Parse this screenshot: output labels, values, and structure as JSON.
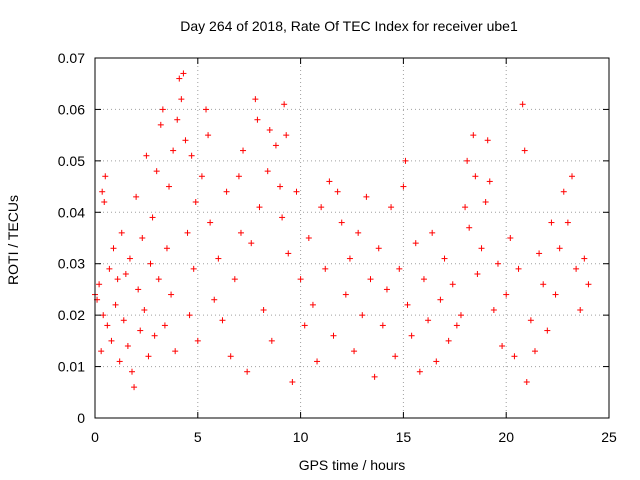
{
  "chart_data": {
    "type": "scatter",
    "title": "Day 264 of 2018, Rate Of TEC Index for receiver ube1",
    "xlabel": "GPS time / hours",
    "ylabel": "ROTI / TECUs",
    "xlim": [
      0,
      25
    ],
    "ylim": [
      0,
      0.07
    ],
    "x_ticks": [
      0,
      5,
      10,
      15,
      20,
      25
    ],
    "y_ticks": [
      0,
      0.01,
      0.02,
      0.03,
      0.04,
      0.05,
      0.06,
      0.07
    ],
    "x_tick_labels": [
      "0",
      "5",
      "10",
      "15",
      "20",
      "25"
    ],
    "y_tick_labels": [
      "0",
      "0.01",
      "0.02",
      "0.03",
      "0.04",
      "0.05",
      "0.06",
      "0.07"
    ],
    "grid": true,
    "marker": "+",
    "series": [
      {
        "color": "#ff0000",
        "points": [
          [
            0.0,
            0.024
          ],
          [
            0.1,
            0.023
          ],
          [
            0.2,
            0.026
          ],
          [
            0.3,
            0.013
          ],
          [
            0.35,
            0.044
          ],
          [
            0.4,
            0.02
          ],
          [
            0.45,
            0.042
          ],
          [
            0.5,
            0.047
          ],
          [
            0.6,
            0.018
          ],
          [
            0.7,
            0.029
          ],
          [
            0.8,
            0.015
          ],
          [
            0.9,
            0.033
          ],
          [
            1.0,
            0.022
          ],
          [
            1.1,
            0.027
          ],
          [
            1.2,
            0.011
          ],
          [
            1.3,
            0.036
          ],
          [
            1.4,
            0.019
          ],
          [
            1.5,
            0.028
          ],
          [
            1.6,
            0.014
          ],
          [
            1.7,
            0.031
          ],
          [
            1.8,
            0.009
          ],
          [
            1.9,
            0.006
          ],
          [
            2.0,
            0.043
          ],
          [
            2.1,
            0.025
          ],
          [
            2.2,
            0.017
          ],
          [
            2.3,
            0.035
          ],
          [
            2.4,
            0.021
          ],
          [
            2.5,
            0.051
          ],
          [
            2.6,
            0.012
          ],
          [
            2.7,
            0.03
          ],
          [
            2.8,
            0.039
          ],
          [
            2.9,
            0.016
          ],
          [
            3.0,
            0.048
          ],
          [
            3.1,
            0.027
          ],
          [
            3.2,
            0.057
          ],
          [
            3.3,
            0.06
          ],
          [
            3.4,
            0.018
          ],
          [
            3.5,
            0.033
          ],
          [
            3.6,
            0.045
          ],
          [
            3.7,
            0.024
          ],
          [
            3.8,
            0.052
          ],
          [
            3.9,
            0.013
          ],
          [
            4.0,
            0.058
          ],
          [
            4.1,
            0.066
          ],
          [
            4.2,
            0.062
          ],
          [
            4.3,
            0.067
          ],
          [
            4.4,
            0.054
          ],
          [
            4.5,
            0.036
          ],
          [
            4.6,
            0.02
          ],
          [
            4.7,
            0.051
          ],
          [
            4.8,
            0.029
          ],
          [
            4.9,
            0.042
          ],
          [
            5.0,
            0.015
          ],
          [
            5.2,
            0.047
          ],
          [
            5.4,
            0.06
          ],
          [
            5.5,
            0.055
          ],
          [
            5.6,
            0.038
          ],
          [
            5.8,
            0.023
          ],
          [
            6.0,
            0.031
          ],
          [
            6.2,
            0.019
          ],
          [
            6.4,
            0.044
          ],
          [
            6.6,
            0.012
          ],
          [
            6.8,
            0.027
          ],
          [
            7.0,
            0.047
          ],
          [
            7.1,
            0.036
          ],
          [
            7.2,
            0.052
          ],
          [
            7.4,
            0.009
          ],
          [
            7.6,
            0.034
          ],
          [
            7.8,
            0.062
          ],
          [
            7.9,
            0.058
          ],
          [
            8.0,
            0.041
          ],
          [
            8.2,
            0.021
          ],
          [
            8.4,
            0.048
          ],
          [
            8.5,
            0.056
          ],
          [
            8.6,
            0.015
          ],
          [
            8.8,
            0.053
          ],
          [
            9.0,
            0.045
          ],
          [
            9.1,
            0.039
          ],
          [
            9.2,
            0.061
          ],
          [
            9.3,
            0.055
          ],
          [
            9.4,
            0.032
          ],
          [
            9.6,
            0.007
          ],
          [
            9.8,
            0.044
          ],
          [
            10.0,
            0.027
          ],
          [
            10.2,
            0.018
          ],
          [
            10.4,
            0.035
          ],
          [
            10.6,
            0.022
          ],
          [
            10.8,
            0.011
          ],
          [
            11.0,
            0.041
          ],
          [
            11.2,
            0.029
          ],
          [
            11.4,
            0.046
          ],
          [
            11.6,
            0.016
          ],
          [
            11.8,
            0.044
          ],
          [
            12.0,
            0.038
          ],
          [
            12.2,
            0.024
          ],
          [
            12.4,
            0.031
          ],
          [
            12.6,
            0.013
          ],
          [
            12.8,
            0.036
          ],
          [
            13.0,
            0.02
          ],
          [
            13.2,
            0.043
          ],
          [
            13.4,
            0.027
          ],
          [
            13.6,
            0.008
          ],
          [
            13.8,
            0.033
          ],
          [
            14.0,
            0.018
          ],
          [
            14.2,
            0.025
          ],
          [
            14.4,
            0.041
          ],
          [
            14.6,
            0.012
          ],
          [
            14.8,
            0.029
          ],
          [
            15.0,
            0.045
          ],
          [
            15.1,
            0.05
          ],
          [
            15.2,
            0.022
          ],
          [
            15.4,
            0.016
          ],
          [
            15.6,
            0.034
          ],
          [
            15.8,
            0.009
          ],
          [
            16.0,
            0.027
          ],
          [
            16.2,
            0.019
          ],
          [
            16.4,
            0.036
          ],
          [
            16.6,
            0.011
          ],
          [
            16.8,
            0.023
          ],
          [
            17.0,
            0.031
          ],
          [
            17.2,
            0.015
          ],
          [
            17.4,
            0.026
          ],
          [
            17.6,
            0.018
          ],
          [
            17.8,
            0.02
          ],
          [
            18.0,
            0.041
          ],
          [
            18.1,
            0.05
          ],
          [
            18.2,
            0.037
          ],
          [
            18.4,
            0.055
          ],
          [
            18.5,
            0.047
          ],
          [
            18.6,
            0.028
          ],
          [
            18.8,
            0.033
          ],
          [
            19.0,
            0.042
          ],
          [
            19.1,
            0.054
          ],
          [
            19.2,
            0.046
          ],
          [
            19.4,
            0.021
          ],
          [
            19.6,
            0.03
          ],
          [
            19.8,
            0.014
          ],
          [
            20.0,
            0.024
          ],
          [
            20.2,
            0.035
          ],
          [
            20.4,
            0.012
          ],
          [
            20.6,
            0.029
          ],
          [
            20.8,
            0.061
          ],
          [
            20.9,
            0.052
          ],
          [
            21.0,
            0.007
          ],
          [
            21.2,
            0.019
          ],
          [
            21.4,
            0.013
          ],
          [
            21.6,
            0.032
          ],
          [
            21.8,
            0.026
          ],
          [
            22.0,
            0.017
          ],
          [
            22.2,
            0.038
          ],
          [
            22.4,
            0.024
          ],
          [
            22.6,
            0.033
          ],
          [
            22.8,
            0.044
          ],
          [
            23.0,
            0.038
          ],
          [
            23.2,
            0.047
          ],
          [
            23.4,
            0.029
          ],
          [
            23.6,
            0.021
          ],
          [
            23.8,
            0.031
          ],
          [
            24.0,
            0.026
          ]
        ]
      }
    ]
  }
}
